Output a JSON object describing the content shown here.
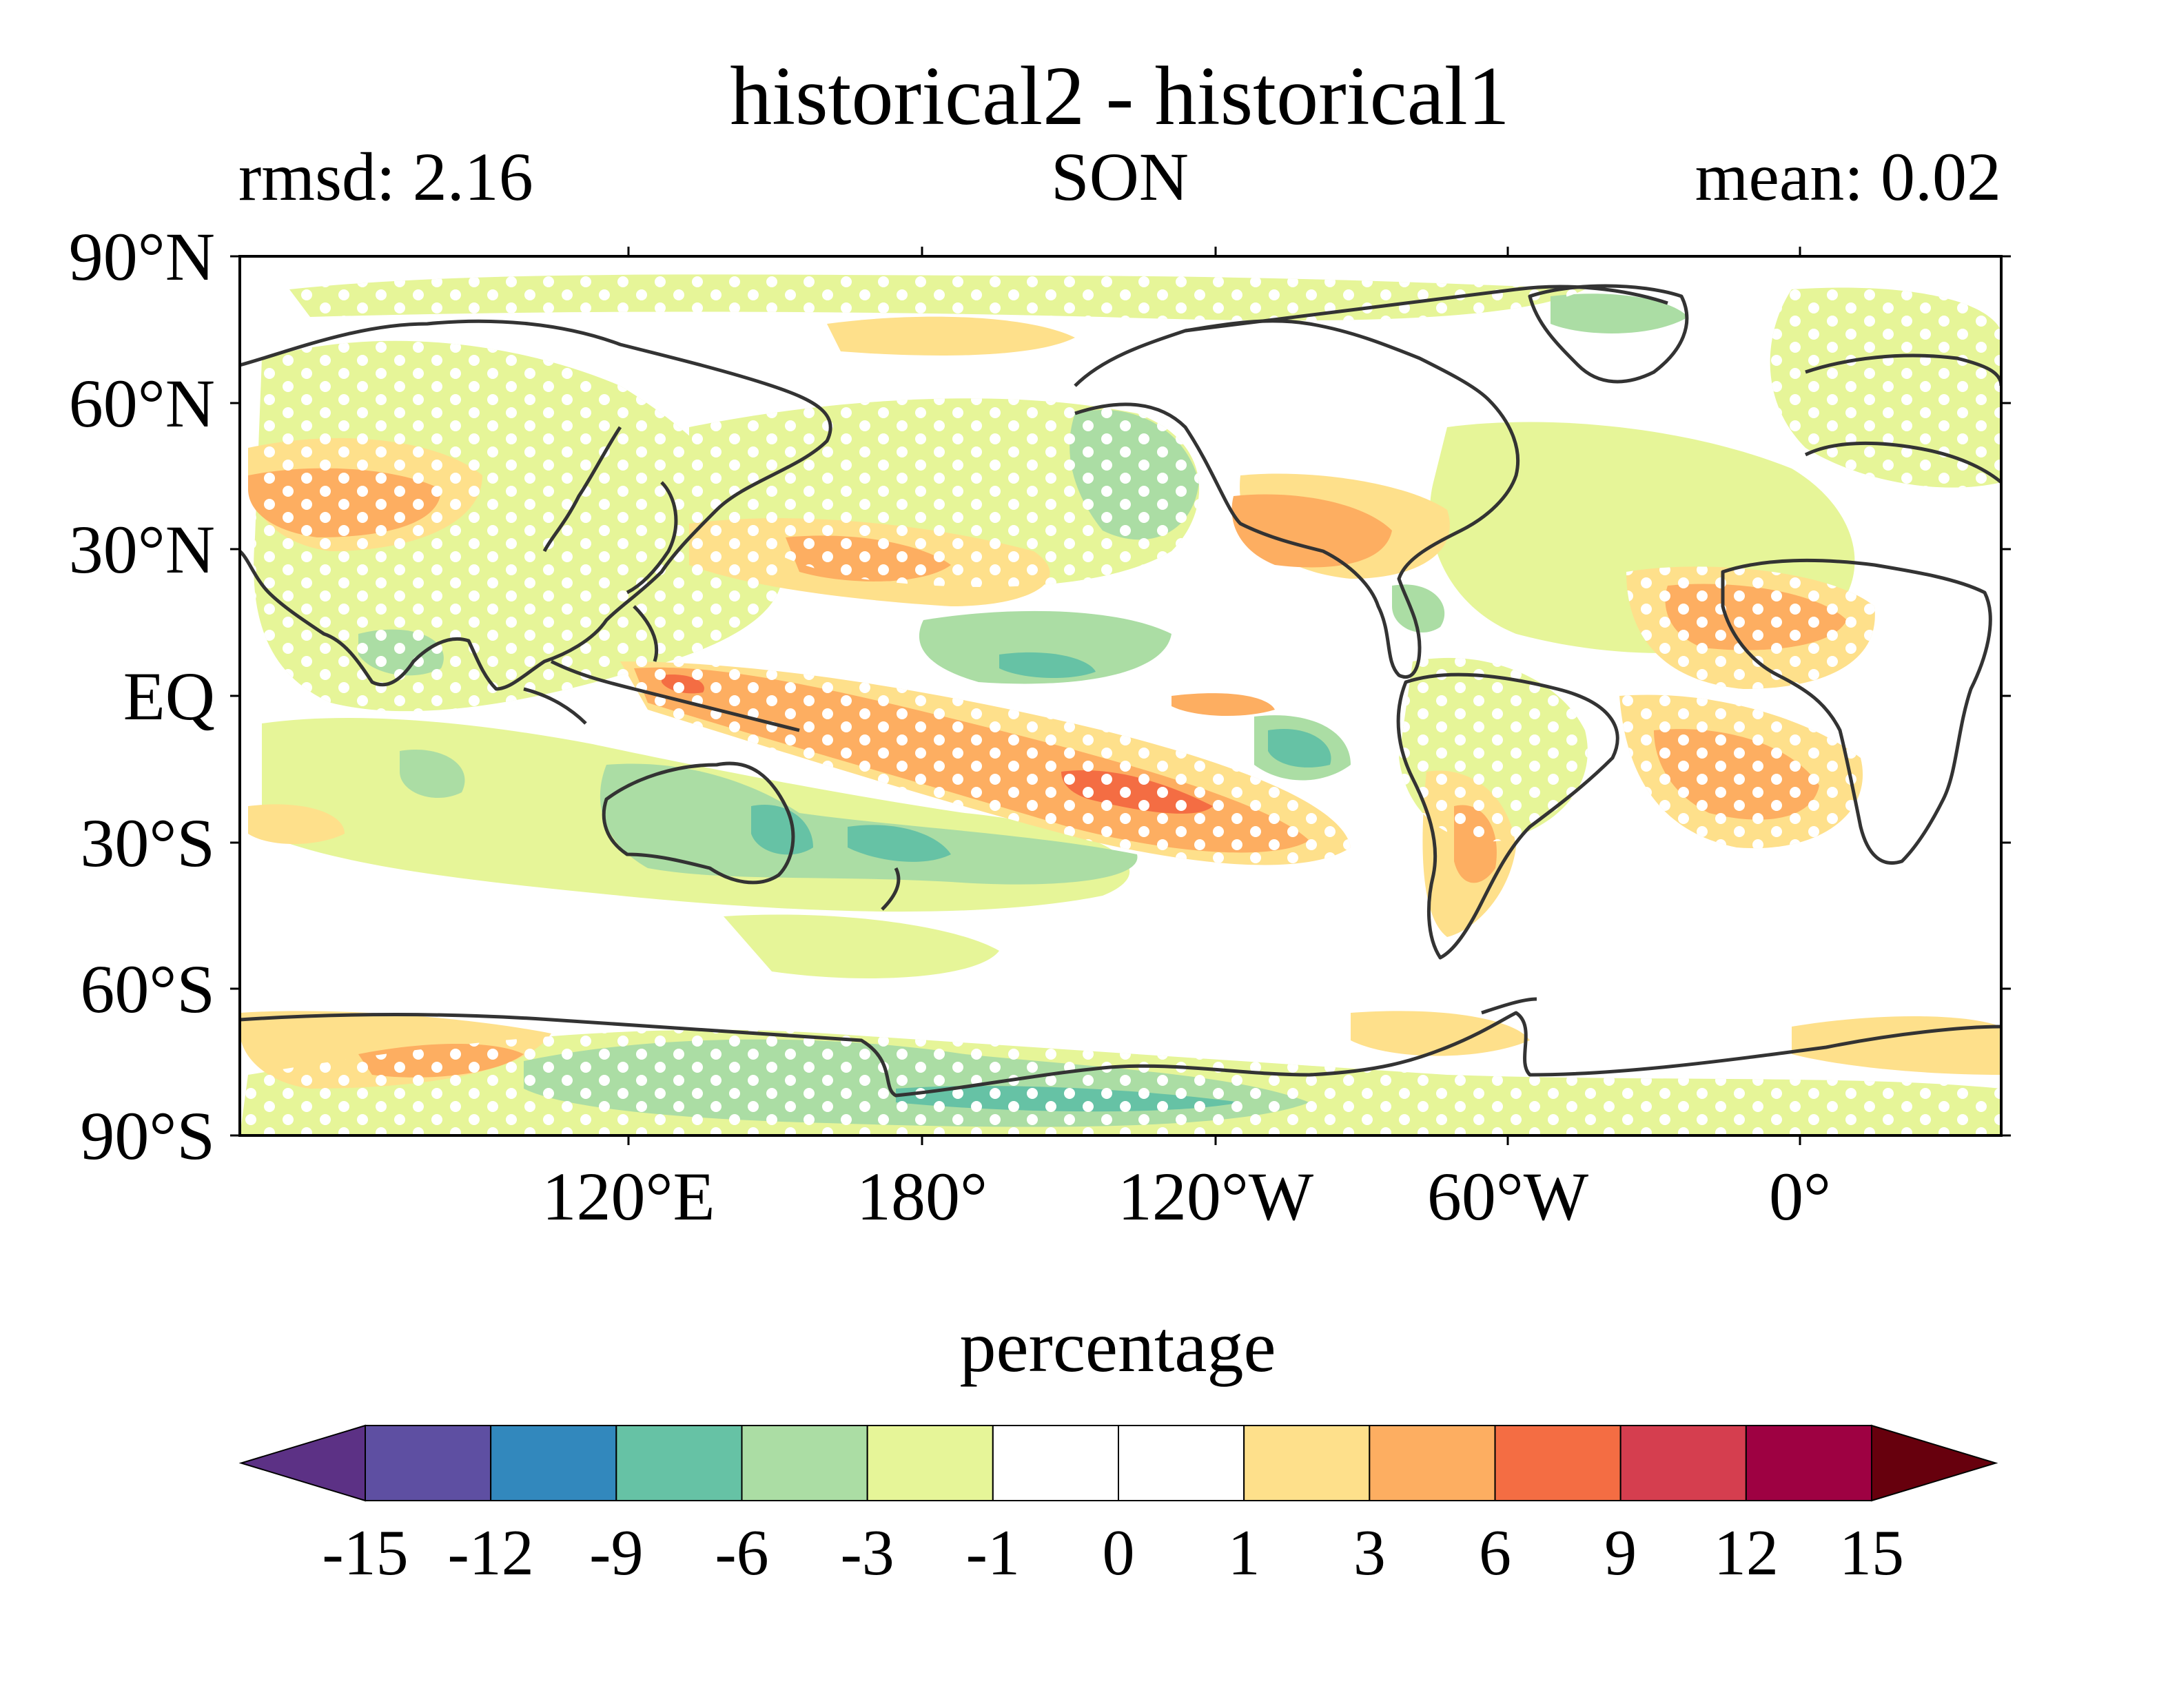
{
  "title": "historical2 - historical1",
  "subtitle_left": "rmsd: 2.16",
  "subtitle_center": "SON",
  "subtitle_right": "mean: 0.02",
  "map": {
    "projection": "PlateCarree",
    "central_longitude": 180,
    "lat_ticks": [
      "90°N",
      "60°N",
      "30°N",
      "EQ",
      "30°S",
      "60°S",
      "90°S"
    ],
    "lon_ticks": [
      "120°E",
      "180°",
      "120°W",
      "60°W",
      "0°"
    ],
    "stippling": "white dots mark significant regions",
    "coastline_color": "#333333"
  },
  "colorbar": {
    "label": "percentage",
    "levels": [
      "-15",
      "-12",
      "-9",
      "-6",
      "-3",
      "-1",
      "0",
      "1",
      "3",
      "6",
      "9",
      "12",
      "15"
    ],
    "colors": [
      "#5c3185",
      "#5e4fa2",
      "#3288bd",
      "#66c2a5",
      "#abdda4",
      "#e6f598",
      "#ffffff",
      "#ffffff",
      "#fee08b",
      "#fdae61",
      "#f46d43",
      "#d53e4f",
      "#9e0142",
      "#67000d"
    ],
    "extend": "both"
  }
}
